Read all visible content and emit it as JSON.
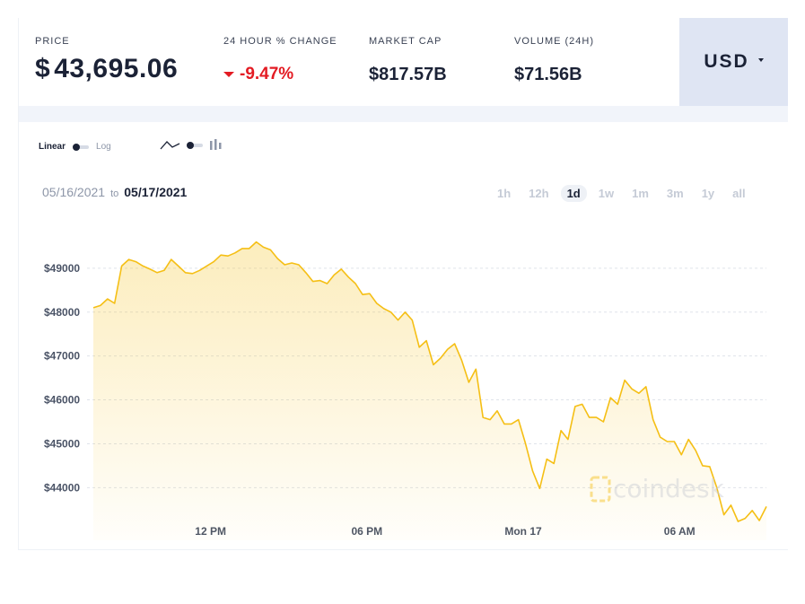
{
  "stats": {
    "price_label": "PRICE",
    "price_currency": "$",
    "price_value": "43,695.06",
    "change_label": "24 HOUR % CHANGE",
    "change_value": "-9.47%",
    "mcap_label": "MARKET CAP",
    "mcap_value": "$817.57B",
    "volume_label": "VOLUME (24H)",
    "volume_value": "$71.56B"
  },
  "currency": {
    "label": "USD",
    "icon": "caret-down-icon"
  },
  "controls": {
    "scale_linear": "Linear",
    "scale_log": "Log",
    "selected_scale": "Linear",
    "chart_type_icons": [
      "line-chart-icon",
      "toggle-switch-icon",
      "candlestick-icon"
    ]
  },
  "dates": {
    "from": "05/16/2021",
    "to_word": "to",
    "to": "05/17/2021"
  },
  "ranges": [
    {
      "label": "1h",
      "active": false
    },
    {
      "label": "12h",
      "active": false
    },
    {
      "label": "1d",
      "active": true
    },
    {
      "label": "1w",
      "active": false
    },
    {
      "label": "1m",
      "active": false
    },
    {
      "label": "3m",
      "active": false
    },
    {
      "label": "1y",
      "active": false
    },
    {
      "label": "all",
      "active": false
    }
  ],
  "watermark": {
    "text": "coindesk"
  },
  "colors": {
    "accent": "#f5bf15",
    "negative": "#e31b23",
    "currency_bg": "#dfe5f3"
  },
  "chart_data": {
    "type": "area",
    "title": "",
    "xlabel": "",
    "ylabel": "",
    "x_start": "2021-05-16 07:30",
    "x_end": "2021-05-17 09:20",
    "x_ticks": [
      {
        "label": "12 PM",
        "time": "2021-05-16 12:00"
      },
      {
        "label": "06 PM",
        "time": "2021-05-16 18:00"
      },
      {
        "label": "Mon 17",
        "time": "2021-05-17 00:00"
      },
      {
        "label": "06 AM",
        "time": "2021-05-17 06:00"
      }
    ],
    "y_ticks": [
      44000,
      45000,
      46000,
      47000,
      48000,
      49000
    ],
    "y_tick_labels": [
      "$44000",
      "$45000",
      "$46000",
      "$47000",
      "$48000",
      "$49000"
    ],
    "ylim": [
      43250,
      50000
    ],
    "grid": "horizontal-dashed",
    "series": [
      {
        "values": [
          48100,
          48150,
          48300,
          48200,
          49050,
          49200,
          49150,
          49050,
          48980,
          48900,
          48950,
          49200,
          49050,
          48900,
          48880,
          48950,
          49050,
          49150,
          49300,
          49280,
          49350,
          49450,
          49450,
          49600,
          49480,
          49420,
          49220,
          49080,
          49120,
          49080,
          48900,
          48700,
          48720,
          48650,
          48850,
          48980,
          48800,
          48650,
          48400,
          48420,
          48200,
          48080,
          48000,
          47820,
          48000,
          47820,
          47200,
          47350,
          46800,
          46950,
          47150,
          47280,
          46900,
          46400,
          46700,
          45600,
          45550,
          45750,
          45450,
          45450,
          45550,
          45000,
          44380,
          43980,
          44650,
          44550,
          45300,
          45100,
          45850,
          45900,
          45600,
          45600,
          45500,
          46050,
          45900,
          46450,
          46250,
          46150,
          46300,
          45550,
          45150,
          45050,
          45050,
          44750,
          45100,
          44850,
          44500,
          44480,
          44000,
          43380,
          43600,
          43230,
          43300,
          43480,
          43250,
          43570
        ]
      }
    ]
  }
}
